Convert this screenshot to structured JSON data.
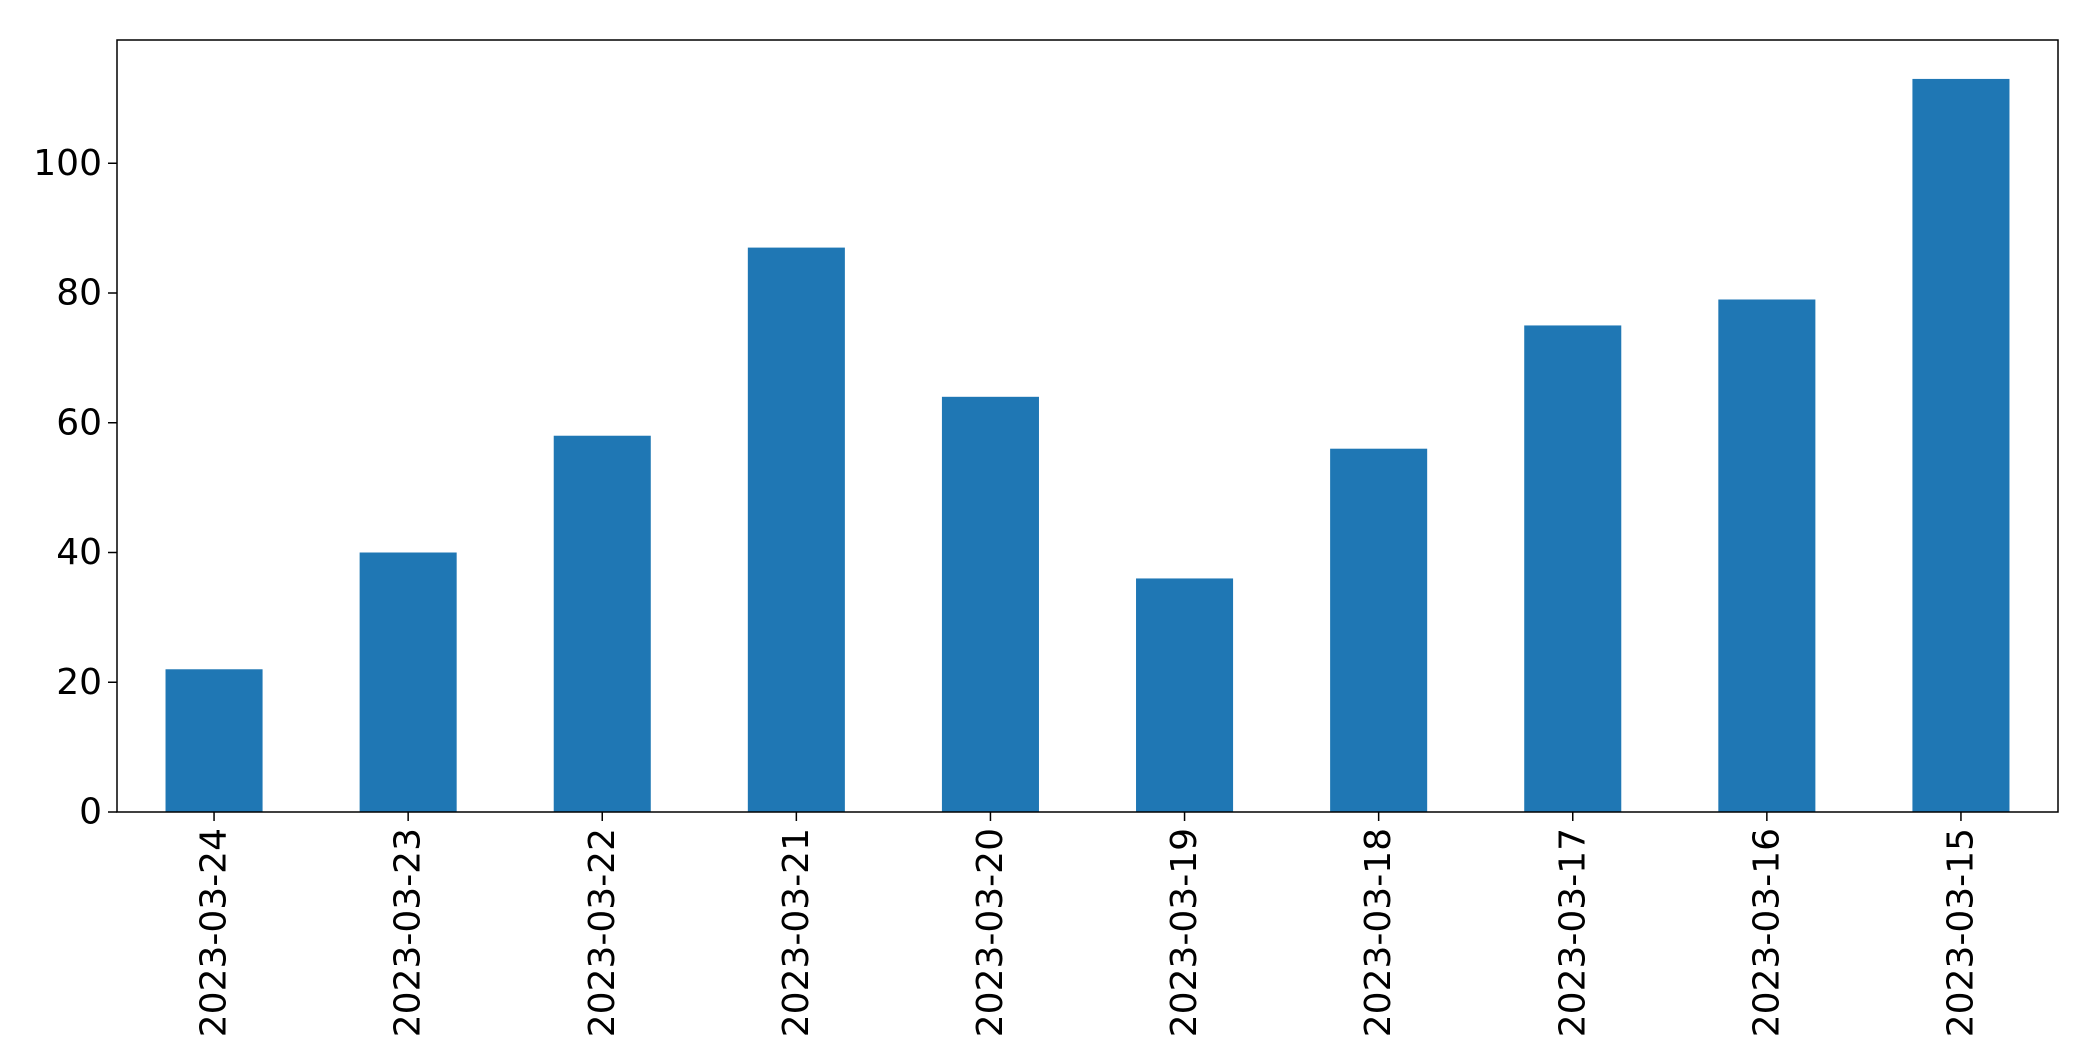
{
  "chart_data": {
    "type": "bar",
    "title": "",
    "xlabel": "",
    "ylabel": "",
    "categories": [
      "2023-03-24",
      "2023-03-23",
      "2023-03-22",
      "2023-03-21",
      "2023-03-20",
      "2023-03-19",
      "2023-03-18",
      "2023-03-17",
      "2023-03-16",
      "2023-03-15"
    ],
    "values": [
      22,
      40,
      58,
      87,
      64,
      36,
      56,
      75,
      79,
      113
    ],
    "ylim": [
      0,
      119
    ],
    "yticks": [
      0,
      20,
      40,
      60,
      80,
      100
    ],
    "grid": false,
    "legend": "none",
    "bar_color": "#1f77b4"
  }
}
